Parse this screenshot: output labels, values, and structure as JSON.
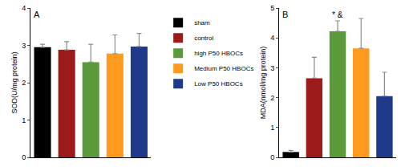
{
  "chart_data": [
    {
      "type": "bar",
      "panel": "A",
      "y_label": "SOD(U/mg protein)",
      "categories": [
        "sham",
        "control",
        "high P50 HBOCs",
        "Medium P50 HBOCs",
        "Low P50 HBOCs"
      ],
      "values": [
        2.95,
        2.88,
        2.55,
        2.78,
        2.97
      ],
      "errors": [
        0.08,
        0.22,
        0.48,
        0.5,
        0.35
      ],
      "colors": [
        "#000000",
        "#9b1b1b",
        "#5a9a3a",
        "#ff9a1f",
        "#1f3a8a"
      ],
      "ylim": [
        0,
        4
      ],
      "yticks": [
        0,
        1,
        2,
        3,
        4
      ],
      "grid": false,
      "tick_labels": "y",
      "legend": "right"
    },
    {
      "type": "bar",
      "panel": "B",
      "y_label": "MDA(nmol/mg protein)",
      "categories": [
        "sham",
        "control",
        "high P50 HBOCs",
        "Medium P50 HBOCs",
        "Low P50 HBOCs"
      ],
      "values": [
        0.18,
        2.65,
        4.22,
        3.65,
        2.05
      ],
      "errors": [
        0.05,
        0.7,
        0.35,
        1.0,
        0.8
      ],
      "colors": [
        "#000000",
        "#9b1b1b",
        "#5a9a3a",
        "#ff9a1f",
        "#1f3a8a"
      ],
      "ylim": [
        0,
        5
      ],
      "yticks": [
        0,
        1,
        2,
        3,
        4,
        5
      ],
      "grid": false,
      "tick_labels": "y",
      "annotations": [
        {
          "category": "high P50 HBOCs",
          "text": "* &"
        }
      ]
    }
  ]
}
